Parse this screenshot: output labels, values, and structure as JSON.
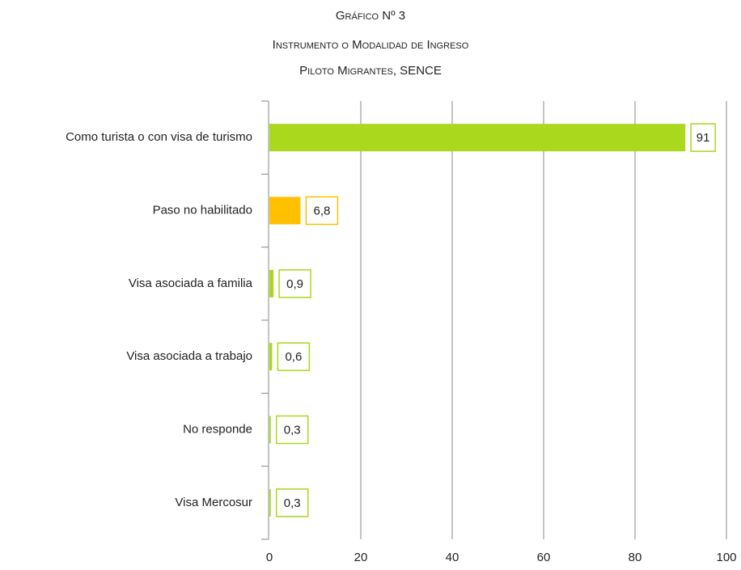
{
  "chart_data": {
    "type": "bar",
    "orientation": "horizontal",
    "title": "Gráfico Nº 3",
    "subtitle": [
      "Instrumento o Modalidad de Ingreso",
      "Piloto Migrantes, SENCE"
    ],
    "categories": [
      "Como turista o con visa de turismo",
      "Paso no habilitado",
      "Visa asociada a familia",
      "Visa asociada a trabajo",
      "No responde",
      "Visa Mercosur"
    ],
    "values": [
      91,
      6.8,
      0.9,
      0.6,
      0.3,
      0.3
    ],
    "value_labels": [
      "91",
      "6,8",
      "0,9",
      "0,6",
      "0,3",
      "0,3"
    ],
    "colors": [
      "#a9d81c",
      "#ffc000",
      "#a9d81c",
      "#a9d81c",
      "#a9d81c",
      "#a9d81c"
    ],
    "xlim": [
      0,
      100
    ],
    "xticks": [
      0,
      20,
      40,
      60,
      80,
      100
    ],
    "grid": true
  }
}
